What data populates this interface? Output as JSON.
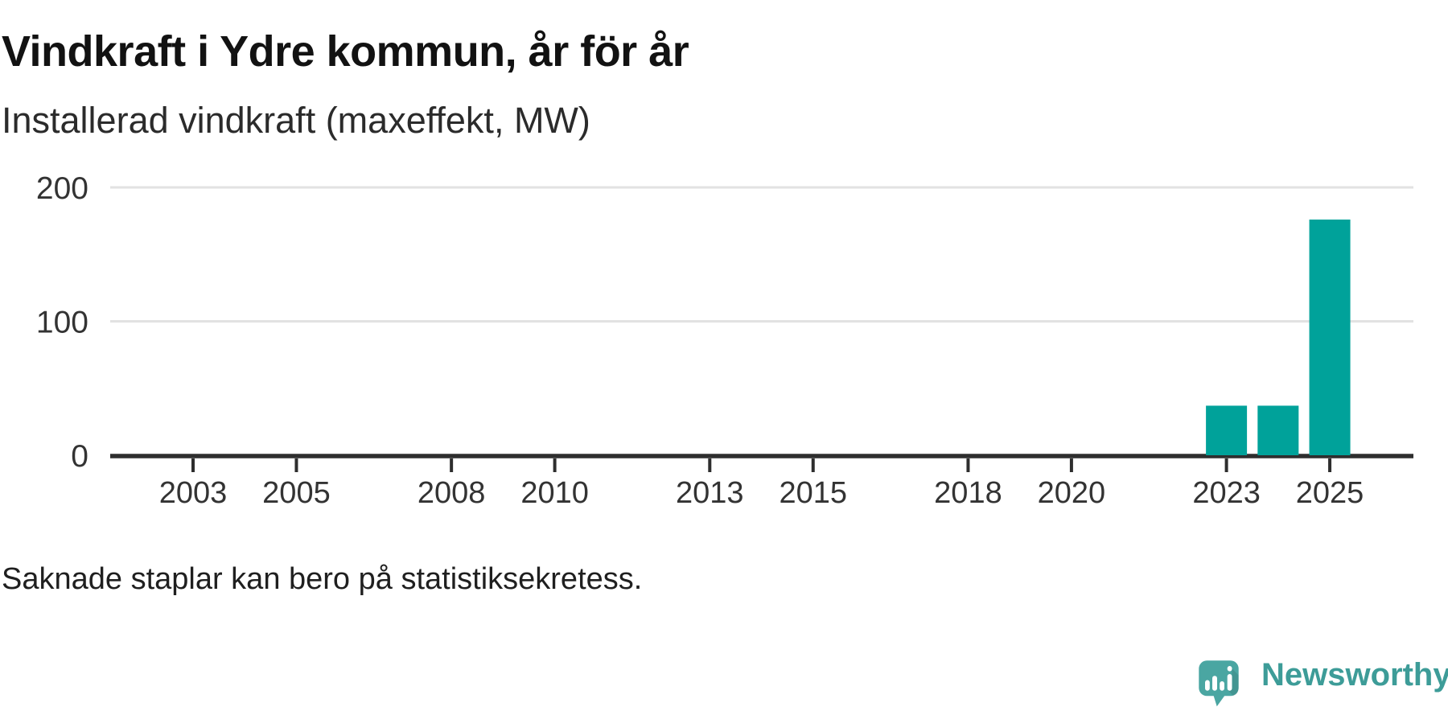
{
  "header": {
    "title": "Vindkraft i Ydre kommun, år för år",
    "subtitle": "Installerad vindkraft (maxeffekt, MW)"
  },
  "footer": {
    "note": "Saknade staplar kan bero på statistiksekretess.",
    "brand": "Newsworthy"
  },
  "colors": {
    "bar": "#00a29a",
    "axis": "#2e2e2e",
    "gridline": "#e2e2e2",
    "tick_label": "#333333",
    "logo_bubble": "#4aa6a2",
    "wordmark": "#3d9c98"
  },
  "chart_data": {
    "type": "bar",
    "title": "Vindkraft i Ydre kommun, år för år",
    "ylabel": "Installerad vindkraft (maxeffekt, MW)",
    "xlabel": "",
    "x_ticks": [
      2003,
      2005,
      2008,
      2010,
      2013,
      2015,
      2018,
      2020,
      2023,
      2025
    ],
    "y_ticks": [
      0,
      100,
      200
    ],
    "xlim": [
      2001.4,
      2026.6
    ],
    "ylim": [
      0,
      210
    ],
    "grid": "horizontal",
    "legend": "none",
    "values": [
      {
        "year": 2023,
        "mw": 37
      },
      {
        "year": 2024,
        "mw": 37
      },
      {
        "year": 2025,
        "mw": 176
      }
    ]
  }
}
